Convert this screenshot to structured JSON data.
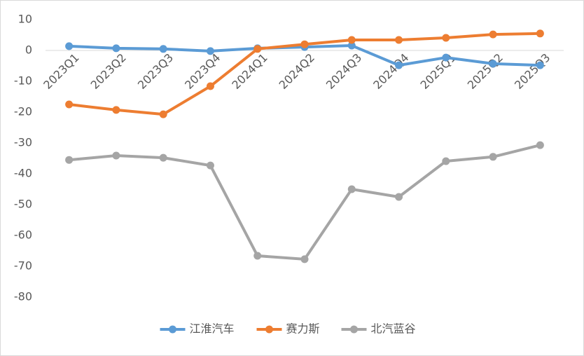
{
  "chart_data": {
    "type": "line",
    "categories": [
      "2023Q1",
      "2023Q2",
      "2023Q3",
      "2023Q4",
      "2024Q1",
      "2024Q2",
      "2024Q3",
      "2024Q4",
      "2025Q1",
      "2025Q2",
      "2025Q3"
    ],
    "series": [
      {
        "name": "江淮汽车",
        "color": "#5b9bd5",
        "values": [
          1.4,
          0.7,
          0.5,
          -0.2,
          0.7,
          1.1,
          1.6,
          -4.8,
          -2.3,
          -4.3,
          -4.8
        ]
      },
      {
        "name": "赛力斯",
        "color": "#ed7d31",
        "values": [
          -17.5,
          -19.3,
          -20.7,
          -11.6,
          0.5,
          2.0,
          3.4,
          3.4,
          4.1,
          5.2,
          5.5
        ]
      },
      {
        "name": "北汽蓝谷",
        "color": "#a5a5a5",
        "values": [
          -35.5,
          -34.1,
          -34.8,
          -37.3,
          -66.6,
          -67.7,
          -45.0,
          -47.5,
          -35.9,
          -34.5,
          -30.7
        ]
      }
    ],
    "ylim": [
      -80,
      10
    ],
    "yticks": [
      10,
      0,
      -10,
      -20,
      -30,
      -40,
      -50,
      -60,
      -70,
      -80
    ],
    "legend": "bottom"
  }
}
